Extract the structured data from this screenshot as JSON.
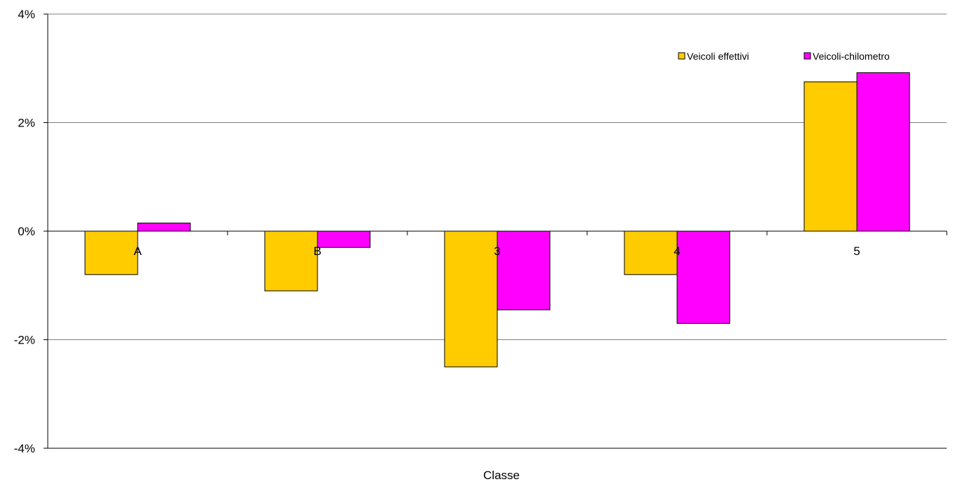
{
  "chart_data": {
    "type": "bar",
    "title": "",
    "xlabel": "Classe",
    "ylabel": "",
    "categories": [
      "A",
      "B",
      "3",
      "4",
      "5"
    ],
    "series": [
      {
        "name": "Veicoli effettivi",
        "color": "#FFCC00",
        "values": [
          -0.8,
          -1.1,
          -2.5,
          -0.8,
          2.75
        ]
      },
      {
        "name": "Veicoli-chilometro",
        "color": "#FF00FF",
        "values": [
          0.15,
          -0.3,
          -1.45,
          -1.7,
          2.92
        ]
      }
    ],
    "ylim": [
      -4,
      4
    ],
    "yticks": [
      {
        "value": 4,
        "label": "4%"
      },
      {
        "value": 2,
        "label": "2%"
      },
      {
        "value": 0,
        "label": "0%"
      },
      {
        "value": -2,
        "label": "-2%"
      },
      {
        "value": -4,
        "label": "-4%"
      }
    ],
    "grid": true,
    "legend": "top-right"
  }
}
